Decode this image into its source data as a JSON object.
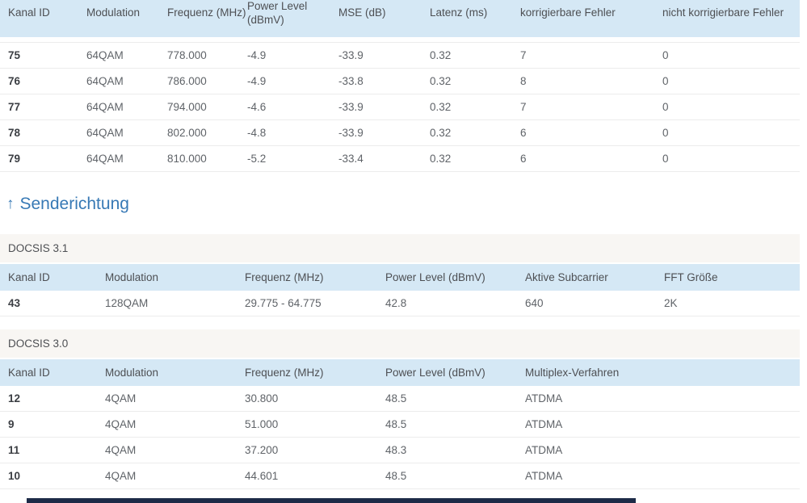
{
  "colors": {
    "header_bg": "#d5e8f5",
    "band_bg": "#f8f6f3",
    "row_border": "#ececec",
    "header_text": "#4d4f53",
    "cell_text": "#5f6368",
    "id_text": "#3c3f44",
    "heading_blue": "#3779b5",
    "footer_bar": "#1d2b48"
  },
  "downstream": {
    "headers": [
      "Kanal ID",
      "Modulation",
      "Frequenz (MHz)",
      "Power Level (dBmV)",
      "MSE (dB)",
      "Latenz (ms)",
      "korrigierbare Fehler",
      "nicht korrigierbare Fehler"
    ],
    "rows": [
      [
        "75",
        "64QAM",
        "778.000",
        "-4.9",
        "-33.9",
        "0.32",
        "7",
        "0"
      ],
      [
        "76",
        "64QAM",
        "786.000",
        "-4.9",
        "-33.8",
        "0.32",
        "8",
        "0"
      ],
      [
        "77",
        "64QAM",
        "794.000",
        "-4.6",
        "-33.9",
        "0.32",
        "7",
        "0"
      ],
      [
        "78",
        "64QAM",
        "802.000",
        "-4.8",
        "-33.9",
        "0.32",
        "6",
        "0"
      ],
      [
        "79",
        "64QAM",
        "810.000",
        "-5.2",
        "-33.4",
        "0.32",
        "6",
        "0"
      ]
    ]
  },
  "heading": {
    "arrow": "↑",
    "label": "Senderichtung"
  },
  "docsis31": {
    "section_label": "DOCSIS 3.1",
    "headers": [
      "Kanal ID",
      "Modulation",
      "Frequenz (MHz)",
      "Power Level (dBmV)",
      "Aktive Subcarrier",
      "FFT Größe"
    ],
    "rows": [
      [
        "43",
        "128QAM",
        "29.775 - 64.775",
        "42.8",
        "640",
        "2K"
      ]
    ]
  },
  "docsis30": {
    "section_label": "DOCSIS 3.0",
    "headers": [
      "Kanal ID",
      "Modulation",
      "Frequenz (MHz)",
      "Power Level (dBmV)",
      "Multiplex-Verfahren"
    ],
    "rows": [
      [
        "12",
        "4QAM",
        "30.800",
        "48.5",
        "ATDMA"
      ],
      [
        "9",
        "4QAM",
        "51.000",
        "48.5",
        "ATDMA"
      ],
      [
        "11",
        "4QAM",
        "37.200",
        "48.3",
        "ATDMA"
      ],
      [
        "10",
        "4QAM",
        "44.601",
        "48.5",
        "ATDMA"
      ]
    ]
  }
}
